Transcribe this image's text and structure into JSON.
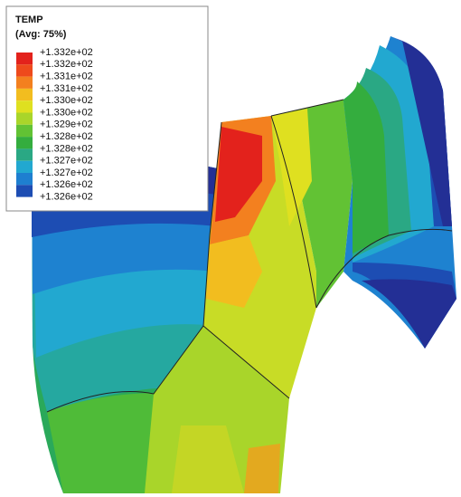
{
  "legend": {
    "title": "TEMP",
    "subtitle": "(Avg: 75%)",
    "labels": [
      "+1.332e+02",
      "+1.332e+02",
      "+1.331e+02",
      "+1.331e+02",
      "+1.330e+02",
      "+1.330e+02",
      "+1.329e+02",
      "+1.328e+02",
      "+1.328e+02",
      "+1.327e+02",
      "+1.327e+02",
      "+1.326e+02",
      "+1.326e+02"
    ],
    "colors": [
      "#e3221c",
      "#ee4a1c",
      "#f3801f",
      "#f2bd1f",
      "#dfe020",
      "#a9d52a",
      "#62c234",
      "#34ad3e",
      "#2aa884",
      "#22a8d0",
      "#1e7fd0",
      "#1d4db3",
      "#232f95"
    ]
  }
}
